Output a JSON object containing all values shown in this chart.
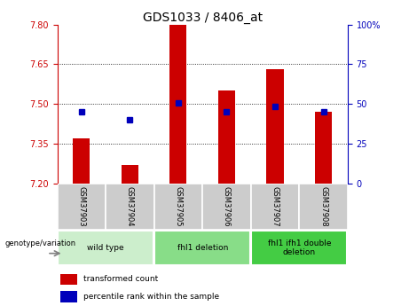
{
  "title": "GDS1033 / 8406_at",
  "samples": [
    "GSM37903",
    "GSM37904",
    "GSM37905",
    "GSM37906",
    "GSM37907",
    "GSM37908"
  ],
  "red_values": [
    7.37,
    7.27,
    7.8,
    7.55,
    7.63,
    7.47
  ],
  "blue_values": [
    7.47,
    7.44,
    7.505,
    7.47,
    7.49,
    7.47
  ],
  "y_min": 7.2,
  "y_max": 7.8,
  "y_ticks": [
    7.2,
    7.35,
    7.5,
    7.65,
    7.8
  ],
  "y2_ticks": [
    0,
    25,
    50,
    75,
    100
  ],
  "grid_ticks": [
    7.35,
    7.5,
    7.65
  ],
  "red_color": "#cc0000",
  "blue_color": "#0000bb",
  "bar_width": 0.35,
  "group_info": [
    {
      "start": 0,
      "end": 1,
      "label": "wild type",
      "color": "#cceecc"
    },
    {
      "start": 2,
      "end": 3,
      "label": "fhl1 deletion",
      "color": "#88dd88"
    },
    {
      "start": 4,
      "end": 5,
      "label": "fhl1 ifh1 double\ndeletion",
      "color": "#44cc44"
    }
  ],
  "legend_red": "transformed count",
  "legend_blue": "percentile rank within the sample",
  "genotype_label": "genotype/variation",
  "sample_box_color": "#cccccc",
  "title_fontsize": 10,
  "tick_fontsize": 7,
  "label_fontsize": 7
}
